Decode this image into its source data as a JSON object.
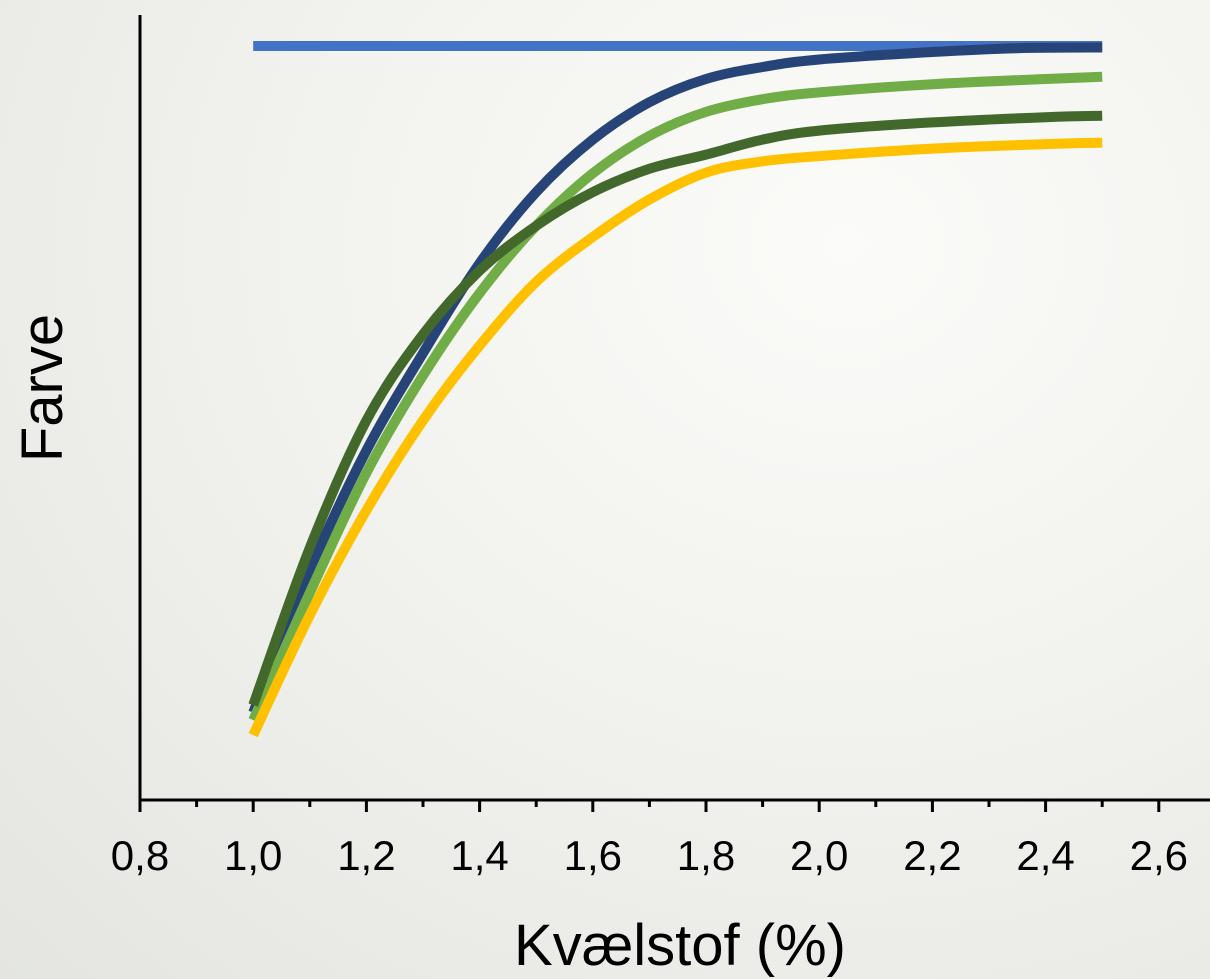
{
  "chart_data": {
    "type": "line",
    "title": "",
    "xlabel": "Kvælstof (%)",
    "ylabel": "Farve",
    "xlim": [
      0.8,
      2.7
    ],
    "ylim": [
      0,
      100
    ],
    "y_ticks_shown": false,
    "grid": false,
    "legend": "none",
    "x_ticks": [
      0.8,
      1.0,
      1.2,
      1.4,
      1.6,
      1.8,
      2.0,
      2.2,
      2.4,
      2.6
    ],
    "x_tick_labels": [
      "0,8",
      "1,0",
      "1,2",
      "1,4",
      "1,6",
      "1,8",
      "2,0",
      "2,2",
      "2,4",
      "2,6"
    ],
    "x_minor_step": 0.1,
    "series": [
      {
        "color": "#4472C4",
        "points": [
          [
            1.0,
            100
          ],
          [
            2.5,
            100
          ]
        ]
      },
      {
        "color": "#264478",
        "points": [
          [
            1.0,
            11
          ],
          [
            1.1,
            30
          ],
          [
            1.2,
            46
          ],
          [
            1.3,
            59
          ],
          [
            1.4,
            71
          ],
          [
            1.5,
            80.5
          ],
          [
            1.6,
            87.5
          ],
          [
            1.7,
            92.5
          ],
          [
            1.8,
            95.6
          ],
          [
            1.9,
            97.2
          ],
          [
            2.0,
            98.2
          ],
          [
            2.2,
            99.2
          ],
          [
            2.35,
            99.7
          ],
          [
            2.5,
            99.8
          ]
        ]
      },
      {
        "color": "#70AD47",
        "points": [
          [
            1.0,
            10
          ],
          [
            1.1,
            27
          ],
          [
            1.2,
            43
          ],
          [
            1.3,
            56
          ],
          [
            1.4,
            67
          ],
          [
            1.5,
            76
          ],
          [
            1.6,
            83
          ],
          [
            1.7,
            88
          ],
          [
            1.8,
            91.2
          ],
          [
            1.9,
            92.9
          ],
          [
            2.0,
            93.8
          ],
          [
            2.2,
            94.9
          ],
          [
            2.4,
            95.6
          ],
          [
            2.5,
            95.9
          ]
        ]
      },
      {
        "color": "#43682B",
        "points": [
          [
            1.0,
            12
          ],
          [
            1.1,
            33
          ],
          [
            1.2,
            50
          ],
          [
            1.3,
            61.5
          ],
          [
            1.4,
            70
          ],
          [
            1.5,
            76
          ],
          [
            1.6,
            80.5
          ],
          [
            1.7,
            83.6
          ],
          [
            1.8,
            85.5
          ],
          [
            1.9,
            87.5
          ],
          [
            2.0,
            88.7
          ],
          [
            2.2,
            89.8
          ],
          [
            2.4,
            90.5
          ],
          [
            2.5,
            90.7
          ]
        ]
      },
      {
        "color": "#FFC000",
        "points": [
          [
            1.0,
            8
          ],
          [
            1.1,
            24
          ],
          [
            1.2,
            38
          ],
          [
            1.3,
            50
          ],
          [
            1.4,
            60
          ],
          [
            1.5,
            68.5
          ],
          [
            1.6,
            74.5
          ],
          [
            1.7,
            79.5
          ],
          [
            1.8,
            83.1
          ],
          [
            1.9,
            84.6
          ],
          [
            2.0,
            85.3
          ],
          [
            2.2,
            86.3
          ],
          [
            2.4,
            86.9
          ],
          [
            2.5,
            87.1
          ]
        ]
      }
    ]
  }
}
